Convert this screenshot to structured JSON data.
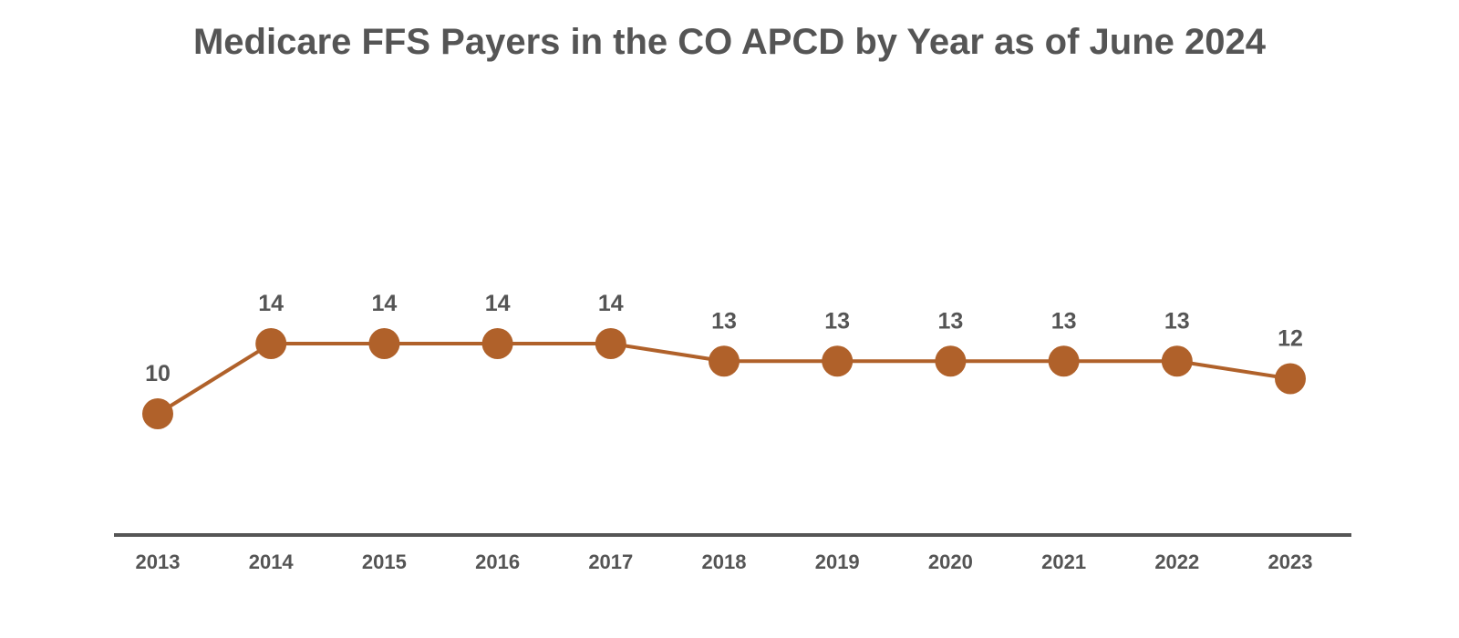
{
  "chart_data": {
    "type": "line",
    "title": "Medicare FFS Payers in the CO APCD by Year as of June 2024",
    "xlabel": "",
    "ylabel": "",
    "categories": [
      "2013",
      "2014",
      "2015",
      "2016",
      "2017",
      "2018",
      "2019",
      "2020",
      "2021",
      "2022",
      "2023"
    ],
    "series": [
      {
        "values": [
          10,
          14,
          14,
          14,
          14,
          13,
          13,
          13,
          13,
          13,
          12
        ],
        "data_labels": [
          "10",
          "14",
          "14",
          "14",
          "14",
          "13",
          "13",
          "13",
          "13",
          "13",
          "12"
        ],
        "color": "#b0612a"
      }
    ],
    "axis_color": "#555555",
    "text_color": "#555555",
    "grid": false,
    "legend": "none",
    "y_axis_visible": false
  }
}
